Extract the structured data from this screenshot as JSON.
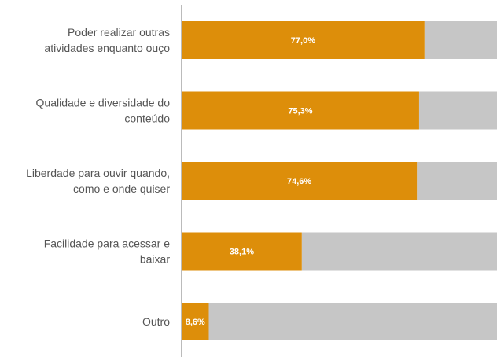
{
  "chart_data": {
    "type": "bar",
    "orientation": "horizontal",
    "stacked_to_100": true,
    "categories": [
      [
        "Poder realizar outras",
        "atividades enquanto ouço"
      ],
      [
        "Qualidade e diversidade do",
        "conteúdo"
      ],
      [
        "Liberdade para ouvir quando,",
        "como e onde quiser"
      ],
      [
        "Facilidade para acessar e",
        "baixar"
      ],
      [
        "Outro"
      ]
    ],
    "values": [
      77.0,
      75.3,
      74.6,
      38.1,
      8.6
    ],
    "value_labels": [
      "77,0%",
      "75,3%",
      "74,6%",
      "38,1%",
      "8,6%"
    ],
    "xlim": [
      0,
      100
    ],
    "colors": {
      "value": "#DD8E0A",
      "remainder": "#C6C6C6",
      "axis": "#BBBBBB"
    },
    "grid": false,
    "legend": "none"
  }
}
